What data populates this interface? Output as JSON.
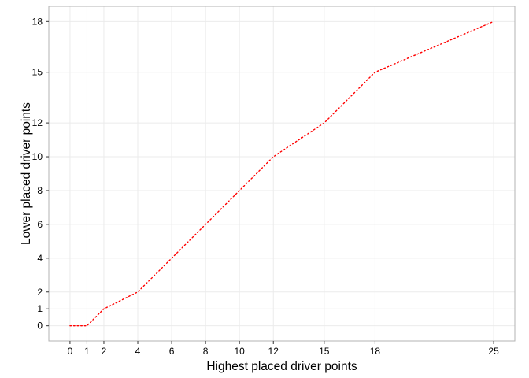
{
  "chart_data": {
    "type": "line",
    "title": "",
    "xlabel": "Highest placed driver points",
    "ylabel": "Lower placed driver points",
    "x_ticks": [
      0,
      1,
      2,
      4,
      6,
      8,
      10,
      12,
      15,
      18,
      25
    ],
    "y_ticks": [
      0,
      1,
      2,
      4,
      6,
      8,
      10,
      12,
      15,
      18
    ],
    "xlim": [
      -1.25,
      26.25
    ],
    "ylim": [
      -0.9,
      18.9
    ],
    "grid": true,
    "legend": "none",
    "series": [
      {
        "x": [
          0,
          1,
          2,
          4,
          6,
          8,
          10,
          12,
          15,
          18,
          25
        ],
        "y": [
          0,
          0,
          1,
          2,
          4,
          6,
          8,
          10,
          12,
          15,
          18
        ],
        "color": "#ff0000",
        "line_style": "dotted"
      }
    ],
    "colors": {
      "panel_border": "#b3b3b3",
      "grid": "#ebebeb",
      "axis_ticks": "#333333"
    }
  }
}
